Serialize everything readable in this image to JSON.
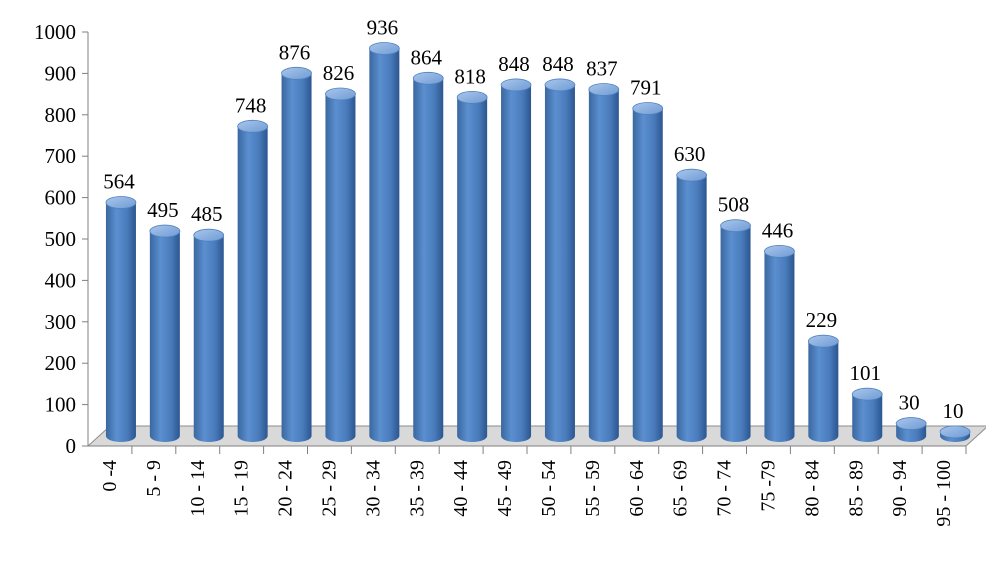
{
  "chart_data": {
    "type": "bar",
    "style": "3d-cylinder",
    "bar_color": "#4f81bd",
    "bar_color_dark": "#2e5b94",
    "bar_color_light": "#8db3e2",
    "categories": [
      "0 -4",
      "5 - 9",
      "10 - 14",
      "15 - 19",
      "20 - 24",
      "25 - 29",
      "30 - 34",
      "35 - 39",
      "40 - 44",
      "45 - 49",
      "50 - 54",
      "55 - 59",
      "60 - 64",
      "65 - 69",
      "70 - 74",
      "75 -79",
      "80 - 84",
      "85 - 89",
      "90 - 94",
      "95 - 100"
    ],
    "values": [
      564,
      495,
      485,
      748,
      876,
      826,
      936,
      864,
      818,
      848,
      848,
      837,
      791,
      630,
      508,
      446,
      229,
      101,
      30,
      10
    ],
    "value_labels": [
      "564",
      "495",
      "485",
      "748",
      "876",
      "826",
      "936",
      "864",
      "818",
      "848",
      "848",
      "837",
      "791",
      "630",
      "508",
      "446",
      "229",
      "101",
      "30",
      "10"
    ],
    "ylim": [
      0,
      1000
    ],
    "yticks": [
      "0",
      "100",
      "200",
      "300",
      "400",
      "500",
      "600",
      "700",
      "800",
      "900",
      "1000"
    ],
    "grid": false,
    "legend": "none",
    "title": "",
    "xlabel": "",
    "ylabel": ""
  }
}
